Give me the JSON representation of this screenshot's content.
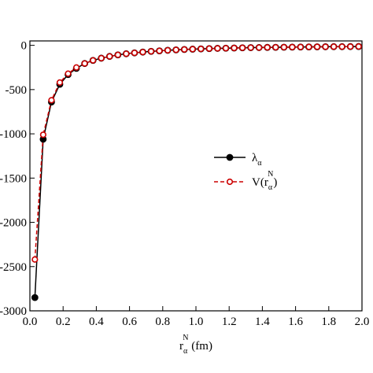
{
  "chart_data": {
    "type": "line",
    "x_label": "r_α^N (fm)",
    "xlim": [
      0,
      2
    ],
    "ylim": [
      -3000,
      50
    ],
    "xticks": [
      {
        "value": 0,
        "label": "0.0"
      },
      {
        "value": 0.2,
        "label": "0.2"
      },
      {
        "value": 0.4,
        "label": "0.4"
      },
      {
        "value": 0.6,
        "label": "0.6"
      },
      {
        "value": 0.8,
        "label": "0.8"
      },
      {
        "value": 1,
        "label": "1.0"
      },
      {
        "value": 1.2,
        "label": "1.2"
      },
      {
        "value": 1.4,
        "label": "1.4"
      },
      {
        "value": 1.6,
        "label": "1.6"
      },
      {
        "value": 1.8,
        "label": "1.8"
      },
      {
        "value": 2,
        "label": "2.0"
      }
    ],
    "yticks": [
      0,
      -500,
      -1000,
      -1500,
      -2000,
      -2500,
      -3000
    ],
    "x": [
      0.03,
      0.08,
      0.13,
      0.18,
      0.23,
      0.28,
      0.33,
      0.38,
      0.43,
      0.48,
      0.53,
      0.58,
      0.63,
      0.68,
      0.73,
      0.78,
      0.83,
      0.88,
      0.93,
      0.98,
      1.03,
      1.08,
      1.13,
      1.18,
      1.23,
      1.28,
      1.33,
      1.38,
      1.43,
      1.48,
      1.53,
      1.58,
      1.63,
      1.68,
      1.73,
      1.78,
      1.83,
      1.88,
      1.93,
      1.98
    ],
    "series": [
      {
        "name": "λ_α",
        "color": "#000000",
        "marker": "filled",
        "dash": false,
        "values": [
          -2850,
          -1060,
          -640,
          -440,
          -330,
          -260,
          -205,
          -170,
          -145,
          -125,
          -108,
          -95,
          -85,
          -76,
          -68,
          -62,
          -56,
          -51,
          -47,
          -43,
          -40,
          -37,
          -34,
          -32,
          -30,
          -28,
          -26,
          -25,
          -23,
          -22,
          -21,
          -20,
          -19,
          -18,
          -17,
          -16,
          -15,
          -15,
          -14,
          -13
        ]
      },
      {
        "name": "V(r_α^N)",
        "color": "#cc0000",
        "marker": "open",
        "dash": true,
        "values": [
          -2420,
          -1010,
          -620,
          -420,
          -320,
          -250,
          -205,
          -170,
          -145,
          -125,
          -108,
          -95,
          -85,
          -76,
          -68,
          -62,
          -56,
          -51,
          -47,
          -43,
          -40,
          -37,
          -34,
          -32,
          -30,
          -28,
          -26,
          -25,
          -23,
          -22,
          -21,
          -20,
          -19,
          -18,
          -17,
          -16,
          -15,
          -15,
          -14,
          -13
        ]
      }
    ]
  }
}
